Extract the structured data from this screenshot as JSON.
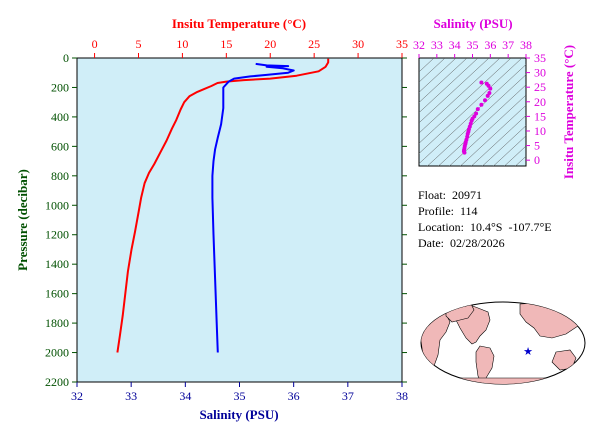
{
  "chart_data": [
    {
      "type": "line",
      "title": "",
      "x_top_label": "Insitu Temperature (°C)",
      "x_bottom_label": "Salinity (PSU)",
      "ylabel": "Pressure (decibar)",
      "temp_xlim": [
        -2,
        35
      ],
      "sal_xlim": [
        32,
        38
      ],
      "ylim": [
        0,
        2200
      ],
      "y_inverted": true,
      "temp_ticks": [
        "0",
        "5",
        "10",
        "15",
        "20",
        "25",
        "30",
        "35"
      ],
      "sal_ticks": [
        "32",
        "33",
        "34",
        "35",
        "36",
        "37",
        "38"
      ],
      "y_ticks": [
        "0",
        "200",
        "400",
        "600",
        "800",
        "1000",
        "1200",
        "1400",
        "1600",
        "1800",
        "2000",
        "2200"
      ],
      "colors": {
        "temperature": "#ff0000",
        "salinity": "#0000ff",
        "plot_bg": "#d0eef8",
        "axis_temp": "#ff0000",
        "axis_sal": "#000099",
        "axis_pressure": "#005000"
      },
      "series": [
        {
          "key": "temperature",
          "points": [
            [
              26.6,
              5
            ],
            [
              26.6,
              30
            ],
            [
              26.3,
              60
            ],
            [
              25.5,
              90
            ],
            [
              23,
              120
            ],
            [
              20,
              140
            ],
            [
              17,
              150
            ],
            [
              15,
              160
            ],
            [
              14,
              170
            ],
            [
              13.3,
              190
            ],
            [
              12.5,
              210
            ],
            [
              11.7,
              230
            ],
            [
              10.8,
              260
            ],
            [
              10.2,
              300
            ],
            [
              9.8,
              350
            ],
            [
              9.3,
              420
            ],
            [
              8.8,
              480
            ],
            [
              8.2,
              560
            ],
            [
              7.5,
              640
            ],
            [
              6.8,
              720
            ],
            [
              6.2,
              780
            ],
            [
              5.7,
              850
            ],
            [
              5.3,
              950
            ],
            [
              5.0,
              1050
            ],
            [
              4.6,
              1180
            ],
            [
              4.2,
              1300
            ],
            [
              3.8,
              1450
            ],
            [
              3.5,
              1600
            ],
            [
              3.2,
              1750
            ],
            [
              2.9,
              1880
            ],
            [
              2.6,
              2000
            ]
          ]
        },
        {
          "key": "salinity",
          "points": [
            [
              35.3,
              40
            ],
            [
              35.5,
              50
            ],
            [
              35.9,
              55
            ],
            [
              35.5,
              60
            ],
            [
              35.8,
              70
            ],
            [
              36.0,
              85
            ],
            [
              35.9,
              100
            ],
            [
              35.5,
              115
            ],
            [
              35.2,
              125
            ],
            [
              34.9,
              140
            ],
            [
              34.8,
              160
            ],
            [
              34.7,
              200
            ],
            [
              34.7,
              260
            ],
            [
              34.7,
              340
            ],
            [
              34.66,
              450
            ],
            [
              34.6,
              540
            ],
            [
              34.55,
              620
            ],
            [
              34.52,
              700
            ],
            [
              34.5,
              800
            ],
            [
              34.5,
              950
            ],
            [
              34.52,
              1200
            ],
            [
              34.55,
              1500
            ],
            [
              34.58,
              1800
            ],
            [
              34.6,
              2000
            ]
          ]
        }
      ]
    },
    {
      "type": "scatter",
      "title": "",
      "x_top_label": "Salinity (PSU)",
      "y_right_label": "Insitu Temperature (°C)",
      "xlim": [
        32,
        38
      ],
      "ylim": [
        -2,
        35
      ],
      "x_ticks": [
        "32",
        "33",
        "34",
        "35",
        "36",
        "37",
        "38"
      ],
      "y_ticks": [
        "0",
        "5",
        "10",
        "15",
        "20",
        "25",
        "30",
        "35"
      ],
      "colors": {
        "points": "#dd00dd",
        "axis": "#dd00dd",
        "plot_bg": "#d0eef8",
        "contours": "#333333"
      },
      "points": [
        [
          35.5,
          26.6
        ],
        [
          35.8,
          26.2
        ],
        [
          35.9,
          25.5
        ],
        [
          36.0,
          24.5
        ],
        [
          35.95,
          23
        ],
        [
          35.85,
          22
        ],
        [
          35.7,
          20.5
        ],
        [
          35.5,
          19
        ],
        [
          35.3,
          17.5
        ],
        [
          35.2,
          16
        ],
        [
          35.1,
          15
        ],
        [
          35.0,
          14.2
        ],
        [
          34.95,
          13.5
        ],
        [
          34.9,
          12.5
        ],
        [
          34.85,
          11.5
        ],
        [
          34.8,
          10.6
        ],
        [
          34.77,
          9.8
        ],
        [
          34.73,
          9
        ],
        [
          34.7,
          8
        ],
        [
          34.66,
          7
        ],
        [
          34.62,
          6.2
        ],
        [
          34.6,
          5.6
        ],
        [
          34.57,
          4.9
        ],
        [
          34.55,
          4.2
        ],
        [
          34.53,
          3.6
        ],
        [
          34.52,
          3.0
        ],
        [
          34.55,
          2.6
        ]
      ]
    }
  ],
  "float_info": {
    "float": "Float:  20971",
    "profile": "Profile:  114",
    "location": "Location:  10.4°S  -107.7°E",
    "date": "Date:  02/28/2026"
  },
  "map": {
    "ocean_color": "#ffffff",
    "land_color": "#f0b8b8",
    "marker_color": "#0000cc",
    "marker": "star"
  }
}
